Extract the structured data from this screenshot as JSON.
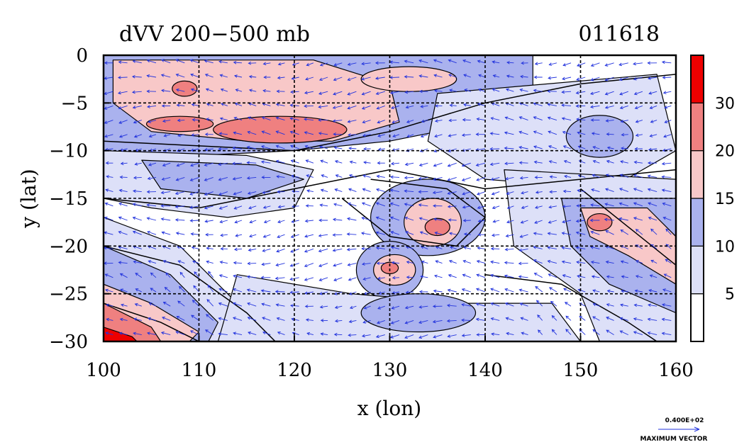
{
  "chart_data": {
    "type": "heatmap",
    "title": "dVV 200−500 mb",
    "date_label": "011618",
    "xlabel": "x (lon)",
    "ylabel": "y (lat)",
    "xlim": [
      100,
      160
    ],
    "ylim": [
      -30,
      0
    ],
    "x_ticks": [
      100,
      110,
      120,
      130,
      140,
      150,
      160
    ],
    "y_ticks": [
      0,
      -5,
      -10,
      -15,
      -20,
      -25,
      -30
    ],
    "x_tick_labels": [
      "100",
      "110",
      "120",
      "130",
      "140",
      "150",
      "160"
    ],
    "y_tick_labels": [
      "0",
      "−5",
      "−10",
      "−15",
      "−20",
      "−25",
      "−30"
    ],
    "grid": true,
    "colorbar": {
      "levels": [
        0,
        5,
        10,
        15,
        20,
        30,
        35
      ],
      "labels": [
        "5",
        "10",
        "15",
        "20",
        "30"
      ],
      "label_values": [
        5,
        10,
        15,
        20,
        30
      ],
      "colors": [
        "#ffffff",
        "#dde0f8",
        "#aab2ee",
        "#f8c8c8",
        "#ef8080",
        "#ee0000"
      ]
    },
    "vector_overlay": {
      "color": "#2233dd",
      "reference_value": "0.400E+02",
      "reference_label": "MAXIMUM VECTOR"
    },
    "regions": [
      {
        "name": "north band",
        "shape": "poly",
        "level": 2,
        "points": [
          [
            100,
            0
          ],
          [
            145,
            0
          ],
          [
            145,
            -6
          ],
          [
            130,
            -9
          ],
          [
            120,
            -10
          ],
          [
            110,
            -10.5
          ],
          [
            100,
            -10
          ]
        ]
      },
      {
        "name": "north band pink",
        "shape": "poly",
        "level": 3,
        "points": [
          [
            101,
            -0.5
          ],
          [
            122,
            -0.5
          ],
          [
            130,
            -3
          ],
          [
            131,
            -7
          ],
          [
            124,
            -9
          ],
          [
            115,
            -9
          ],
          [
            105,
            -8
          ],
          [
            101,
            -5
          ]
        ]
      },
      {
        "name": "north red 1",
        "shape": "ellipse",
        "level": 4,
        "cx": 118.5,
        "cy": -7.8,
        "rx": 7,
        "ry": 1.4
      },
      {
        "name": "north red 2",
        "shape": "ellipse",
        "level": 4,
        "cx": 108,
        "cy": -7.2,
        "rx": 3.5,
        "ry": 0.8
      },
      {
        "name": "north red 3",
        "shape": "ellipse",
        "level": 4,
        "cx": 108.5,
        "cy": -3.5,
        "rx": 1.3,
        "ry": 0.8
      },
      {
        "name": "north pink band 2",
        "shape": "ellipse",
        "level": 3,
        "cx": 132,
        "cy": -2.5,
        "rx": 5,
        "ry": 1.3
      },
      {
        "name": "mid band",
        "shape": "poly",
        "level": 1,
        "points": [
          [
            100,
            -10
          ],
          [
            115,
            -10.5
          ],
          [
            122,
            -12
          ],
          [
            120,
            -16
          ],
          [
            113,
            -17
          ],
          [
            105,
            -16
          ],
          [
            100,
            -15
          ]
        ]
      },
      {
        "name": "mid band 2",
        "shape": "poly",
        "level": 2,
        "points": [
          [
            104,
            -11
          ],
          [
            116,
            -11.5
          ],
          [
            121,
            -13
          ],
          [
            115,
            -15
          ],
          [
            106,
            -14
          ]
        ]
      },
      {
        "name": "east upper",
        "shape": "poly",
        "level": 1,
        "points": [
          [
            135,
            -4
          ],
          [
            158,
            -2
          ],
          [
            160,
            -10
          ],
          [
            153,
            -14
          ],
          [
            140,
            -13
          ],
          [
            134,
            -9
          ]
        ]
      },
      {
        "name": "east upper 2",
        "shape": "ellipse",
        "level": 2,
        "cx": 152,
        "cy": -8.5,
        "rx": 3.5,
        "ry": 2.2
      },
      {
        "name": "center patch",
        "shape": "ellipse",
        "level": 2,
        "cx": 134,
        "cy": -17,
        "rx": 6,
        "ry": 4
      },
      {
        "name": "center pink",
        "shape": "ellipse",
        "level": 3,
        "cx": 134.5,
        "cy": -17.5,
        "rx": 3,
        "ry": 2.5
      },
      {
        "name": "center red",
        "shape": "ellipse",
        "level": 4,
        "cx": 135,
        "cy": -18,
        "rx": 1.3,
        "ry": 0.9
      },
      {
        "name": "south center",
        "shape": "ellipse",
        "level": 2,
        "cx": 130,
        "cy": -22.5,
        "rx": 3.5,
        "ry": 3
      },
      {
        "name": "south center pink",
        "shape": "ellipse",
        "level": 3,
        "cx": 130.5,
        "cy": -22.5,
        "rx": 2.2,
        "ry": 1.6
      },
      {
        "name": "south center red",
        "shape": "ellipse",
        "level": 4,
        "cx": 130,
        "cy": -22.3,
        "rx": 0.9,
        "ry": 0.6
      },
      {
        "name": "east diag",
        "shape": "poly",
        "level": 1,
        "points": [
          [
            142,
            -12
          ],
          [
            160,
            -13
          ],
          [
            160,
            -30
          ],
          [
            152,
            -30
          ],
          [
            150,
            -25
          ],
          [
            143,
            -20
          ]
        ]
      },
      {
        "name": "east diag 2",
        "shape": "poly",
        "level": 2,
        "points": [
          [
            148,
            -15
          ],
          [
            160,
            -15
          ],
          [
            160,
            -27
          ],
          [
            153,
            -24
          ],
          [
            149,
            -20
          ]
        ]
      },
      {
        "name": "east diag pink",
        "shape": "poly",
        "level": 3,
        "points": [
          [
            150,
            -16
          ],
          [
            157,
            -16
          ],
          [
            160,
            -19
          ],
          [
            160,
            -24
          ],
          [
            155,
            -21
          ],
          [
            151,
            -19
          ]
        ]
      },
      {
        "name": "east diag red",
        "shape": "ellipse",
        "level": 4,
        "cx": 152,
        "cy": -17.5,
        "rx": 1.3,
        "ry": 0.9
      },
      {
        "name": "sw band",
        "shape": "poly",
        "level": 1,
        "points": [
          [
            100,
            -17
          ],
          [
            108,
            -20
          ],
          [
            114,
            -26
          ],
          [
            112,
            -30
          ],
          [
            100,
            -30
          ]
        ]
      },
      {
        "name": "sw band 2",
        "shape": "poly",
        "level": 2,
        "points": [
          [
            100,
            -20
          ],
          [
            107,
            -23
          ],
          [
            112,
            -28
          ],
          [
            111,
            -30
          ],
          [
            100,
            -30
          ]
        ]
      },
      {
        "name": "sw pink",
        "shape": "poly",
        "level": 3,
        "points": [
          [
            100,
            -24
          ],
          [
            105,
            -26
          ],
          [
            110,
            -29
          ],
          [
            109,
            -30
          ],
          [
            100,
            -30
          ]
        ]
      },
      {
        "name": "sw red",
        "shape": "poly",
        "level": 4,
        "points": [
          [
            100,
            -26
          ],
          [
            105,
            -28.5
          ],
          [
            106,
            -30
          ],
          [
            100,
            -30
          ]
        ]
      },
      {
        "name": "sw dark",
        "shape": "poly",
        "level": 5,
        "points": [
          [
            100,
            -28.5
          ],
          [
            103,
            -29.5
          ],
          [
            103.5,
            -30
          ],
          [
            100,
            -30
          ]
        ]
      },
      {
        "name": "bottom mid",
        "shape": "poly",
        "level": 1,
        "points": [
          [
            114,
            -23
          ],
          [
            126,
            -25
          ],
          [
            138,
            -26
          ],
          [
            147,
            -26
          ],
          [
            150,
            -30
          ],
          [
            112,
            -30
          ]
        ]
      },
      {
        "name": "bottom mid 2",
        "shape": "ellipse",
        "level": 2,
        "cx": 133,
        "cy": -27,
        "rx": 6,
        "ry": 2
      }
    ],
    "contours": [
      [
        [
          100,
          -9
        ],
        [
          110,
          -9.5
        ],
        [
          120,
          -10
        ],
        [
          130,
          -8
        ],
        [
          140,
          -5
        ],
        [
          150,
          -3
        ],
        [
          160,
          -2
        ]
      ],
      [
        [
          100,
          -15
        ],
        [
          110,
          -16
        ],
        [
          120,
          -14
        ],
        [
          130,
          -12
        ],
        [
          140,
          -14
        ],
        [
          150,
          -13
        ],
        [
          160,
          -12
        ]
      ],
      [
        [
          100,
          -20
        ],
        [
          108,
          -22
        ],
        [
          115,
          -27
        ],
        [
          118,
          -30
        ]
      ],
      [
        [
          140,
          -23
        ],
        [
          148,
          -24
        ],
        [
          155,
          -28
        ],
        [
          158,
          -30
        ]
      ],
      [
        [
          125,
          -15
        ],
        [
          130,
          -19
        ],
        [
          137,
          -20
        ],
        [
          140,
          -17
        ],
        [
          136,
          -14
        ],
        [
          128,
          -13
        ]
      ],
      [
        [
          100,
          -26
        ],
        [
          106,
          -28
        ],
        [
          110,
          -30
        ]
      ],
      [
        [
          150,
          -14
        ],
        [
          155,
          -18
        ],
        [
          160,
          -22
        ]
      ]
    ]
  }
}
